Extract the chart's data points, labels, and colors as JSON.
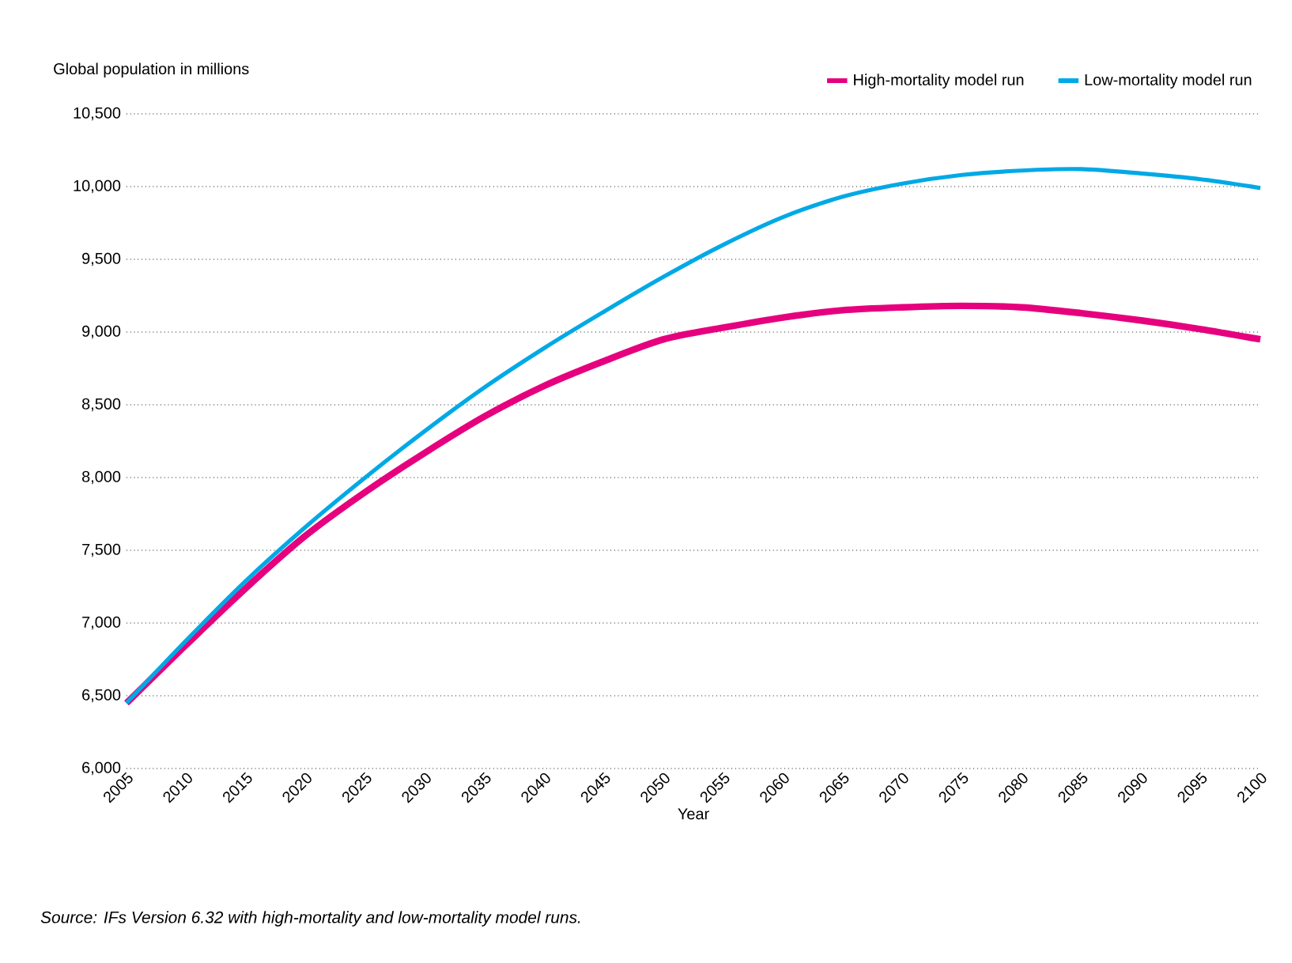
{
  "chart_data": {
    "type": "line",
    "xlabel": "Year",
    "ylabel": "Global population in millions",
    "x": [
      2005,
      2010,
      2015,
      2020,
      2025,
      2030,
      2035,
      2040,
      2045,
      2050,
      2055,
      2060,
      2065,
      2070,
      2075,
      2080,
      2085,
      2090,
      2095,
      2100
    ],
    "series": [
      {
        "name": "High-mortality model run",
        "color": "#e6007e",
        "values": [
          6450,
          6850,
          7240,
          7600,
          7900,
          8170,
          8420,
          8630,
          8800,
          8950,
          9030,
          9100,
          9150,
          9170,
          9180,
          9170,
          9130,
          9080,
          9020,
          8950
        ]
      },
      {
        "name": "Low-mortality model run",
        "color": "#00a9e6",
        "values": [
          6450,
          6880,
          7290,
          7660,
          8000,
          8320,
          8620,
          8890,
          9140,
          9380,
          9600,
          9790,
          9930,
          10020,
          10080,
          10110,
          10120,
          10090,
          10050,
          9990
        ]
      }
    ],
    "xlim": [
      2005,
      2100
    ],
    "xticks": [
      2005,
      2010,
      2015,
      2020,
      2025,
      2030,
      2035,
      2040,
      2045,
      2050,
      2055,
      2060,
      2065,
      2070,
      2075,
      2080,
      2085,
      2090,
      2095,
      2100
    ],
    "ylim": [
      6000,
      10500
    ],
    "yticks": [
      {
        "value": 6000,
        "label": "6,000"
      },
      {
        "value": 6500,
        "label": "6,500"
      },
      {
        "value": 7000,
        "label": "7,000"
      },
      {
        "value": 7500,
        "label": "7,500"
      },
      {
        "value": 8000,
        "label": "8,000"
      },
      {
        "value": 8500,
        "label": "8,500"
      },
      {
        "value": 9000,
        "label": "9,000"
      },
      {
        "value": 9500,
        "label": "9,500"
      },
      {
        "value": 10000,
        "label": "10,000"
      },
      {
        "value": 10500,
        "label": "10,500"
      }
    ],
    "grid": "y",
    "legend": "top right",
    "marker": "none",
    "line_style": "solid",
    "annotations": [
      "Source: IFs Version 6.32 with high-mortality and low-mortality model runs."
    ]
  }
}
